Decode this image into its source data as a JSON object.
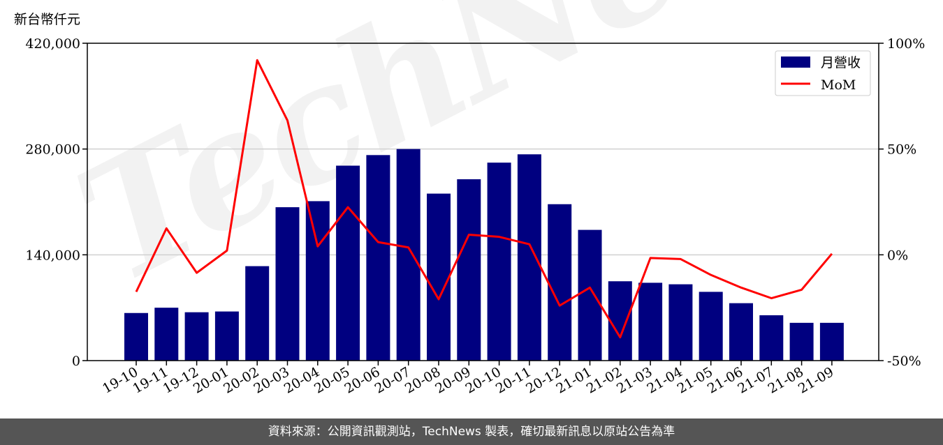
{
  "chart_data": {
    "type": "bar",
    "unit_label": "新台幣仟元",
    "categories": [
      "19-10",
      "19-11",
      "19-12",
      "20-01",
      "20-02",
      "20-03",
      "20-04",
      "20-05",
      "20-06",
      "20-07",
      "20-08",
      "20-09",
      "20-10",
      "20-11",
      "20-12",
      "21-01",
      "21-02",
      "21-03",
      "21-04",
      "21-05",
      "21-06",
      "21-07",
      "21-08",
      "21-09"
    ],
    "series": [
      {
        "name": "月營收",
        "type": "bar",
        "axis": "left",
        "color": "#000080",
        "values": [
          63000,
          70000,
          64000,
          65000,
          125000,
          203000,
          211000,
          258000,
          272000,
          280000,
          221000,
          240000,
          262000,
          273000,
          207000,
          173000,
          105000,
          103000,
          101000,
          91000,
          76000,
          60000,
          50000,
          50000
        ]
      },
      {
        "name": "MoM",
        "type": "line",
        "axis": "right",
        "color": "#ff0000",
        "values": [
          -17.5,
          12.5,
          -8.5,
          2.0,
          92.0,
          63.5,
          4.0,
          22.5,
          6.0,
          3.5,
          -21.0,
          9.5,
          8.5,
          5.0,
          -24.0,
          -15.5,
          -39.0,
          -1.5,
          -2.0,
          -9.5,
          -15.5,
          -20.5,
          -16.5,
          0.5
        ]
      }
    ],
    "y_left": {
      "ylim": [
        0,
        420000
      ],
      "ticks": [
        0,
        140000,
        280000,
        420000
      ],
      "tick_labels": [
        "0",
        "140,000",
        "280,000",
        "420,000"
      ]
    },
    "y_right": {
      "ylim": [
        -50,
        100
      ],
      "ticks": [
        -50,
        0,
        50,
        100
      ],
      "tick_labels": [
        "-50%",
        "0%",
        "50%",
        "100%"
      ]
    },
    "grid": "horizontal",
    "legend": "top-right",
    "watermark": "TechNews"
  },
  "footer_text": "資料來源：公開資訊觀測站，TechNews 製表，確切最新訊息以原站公告為準"
}
